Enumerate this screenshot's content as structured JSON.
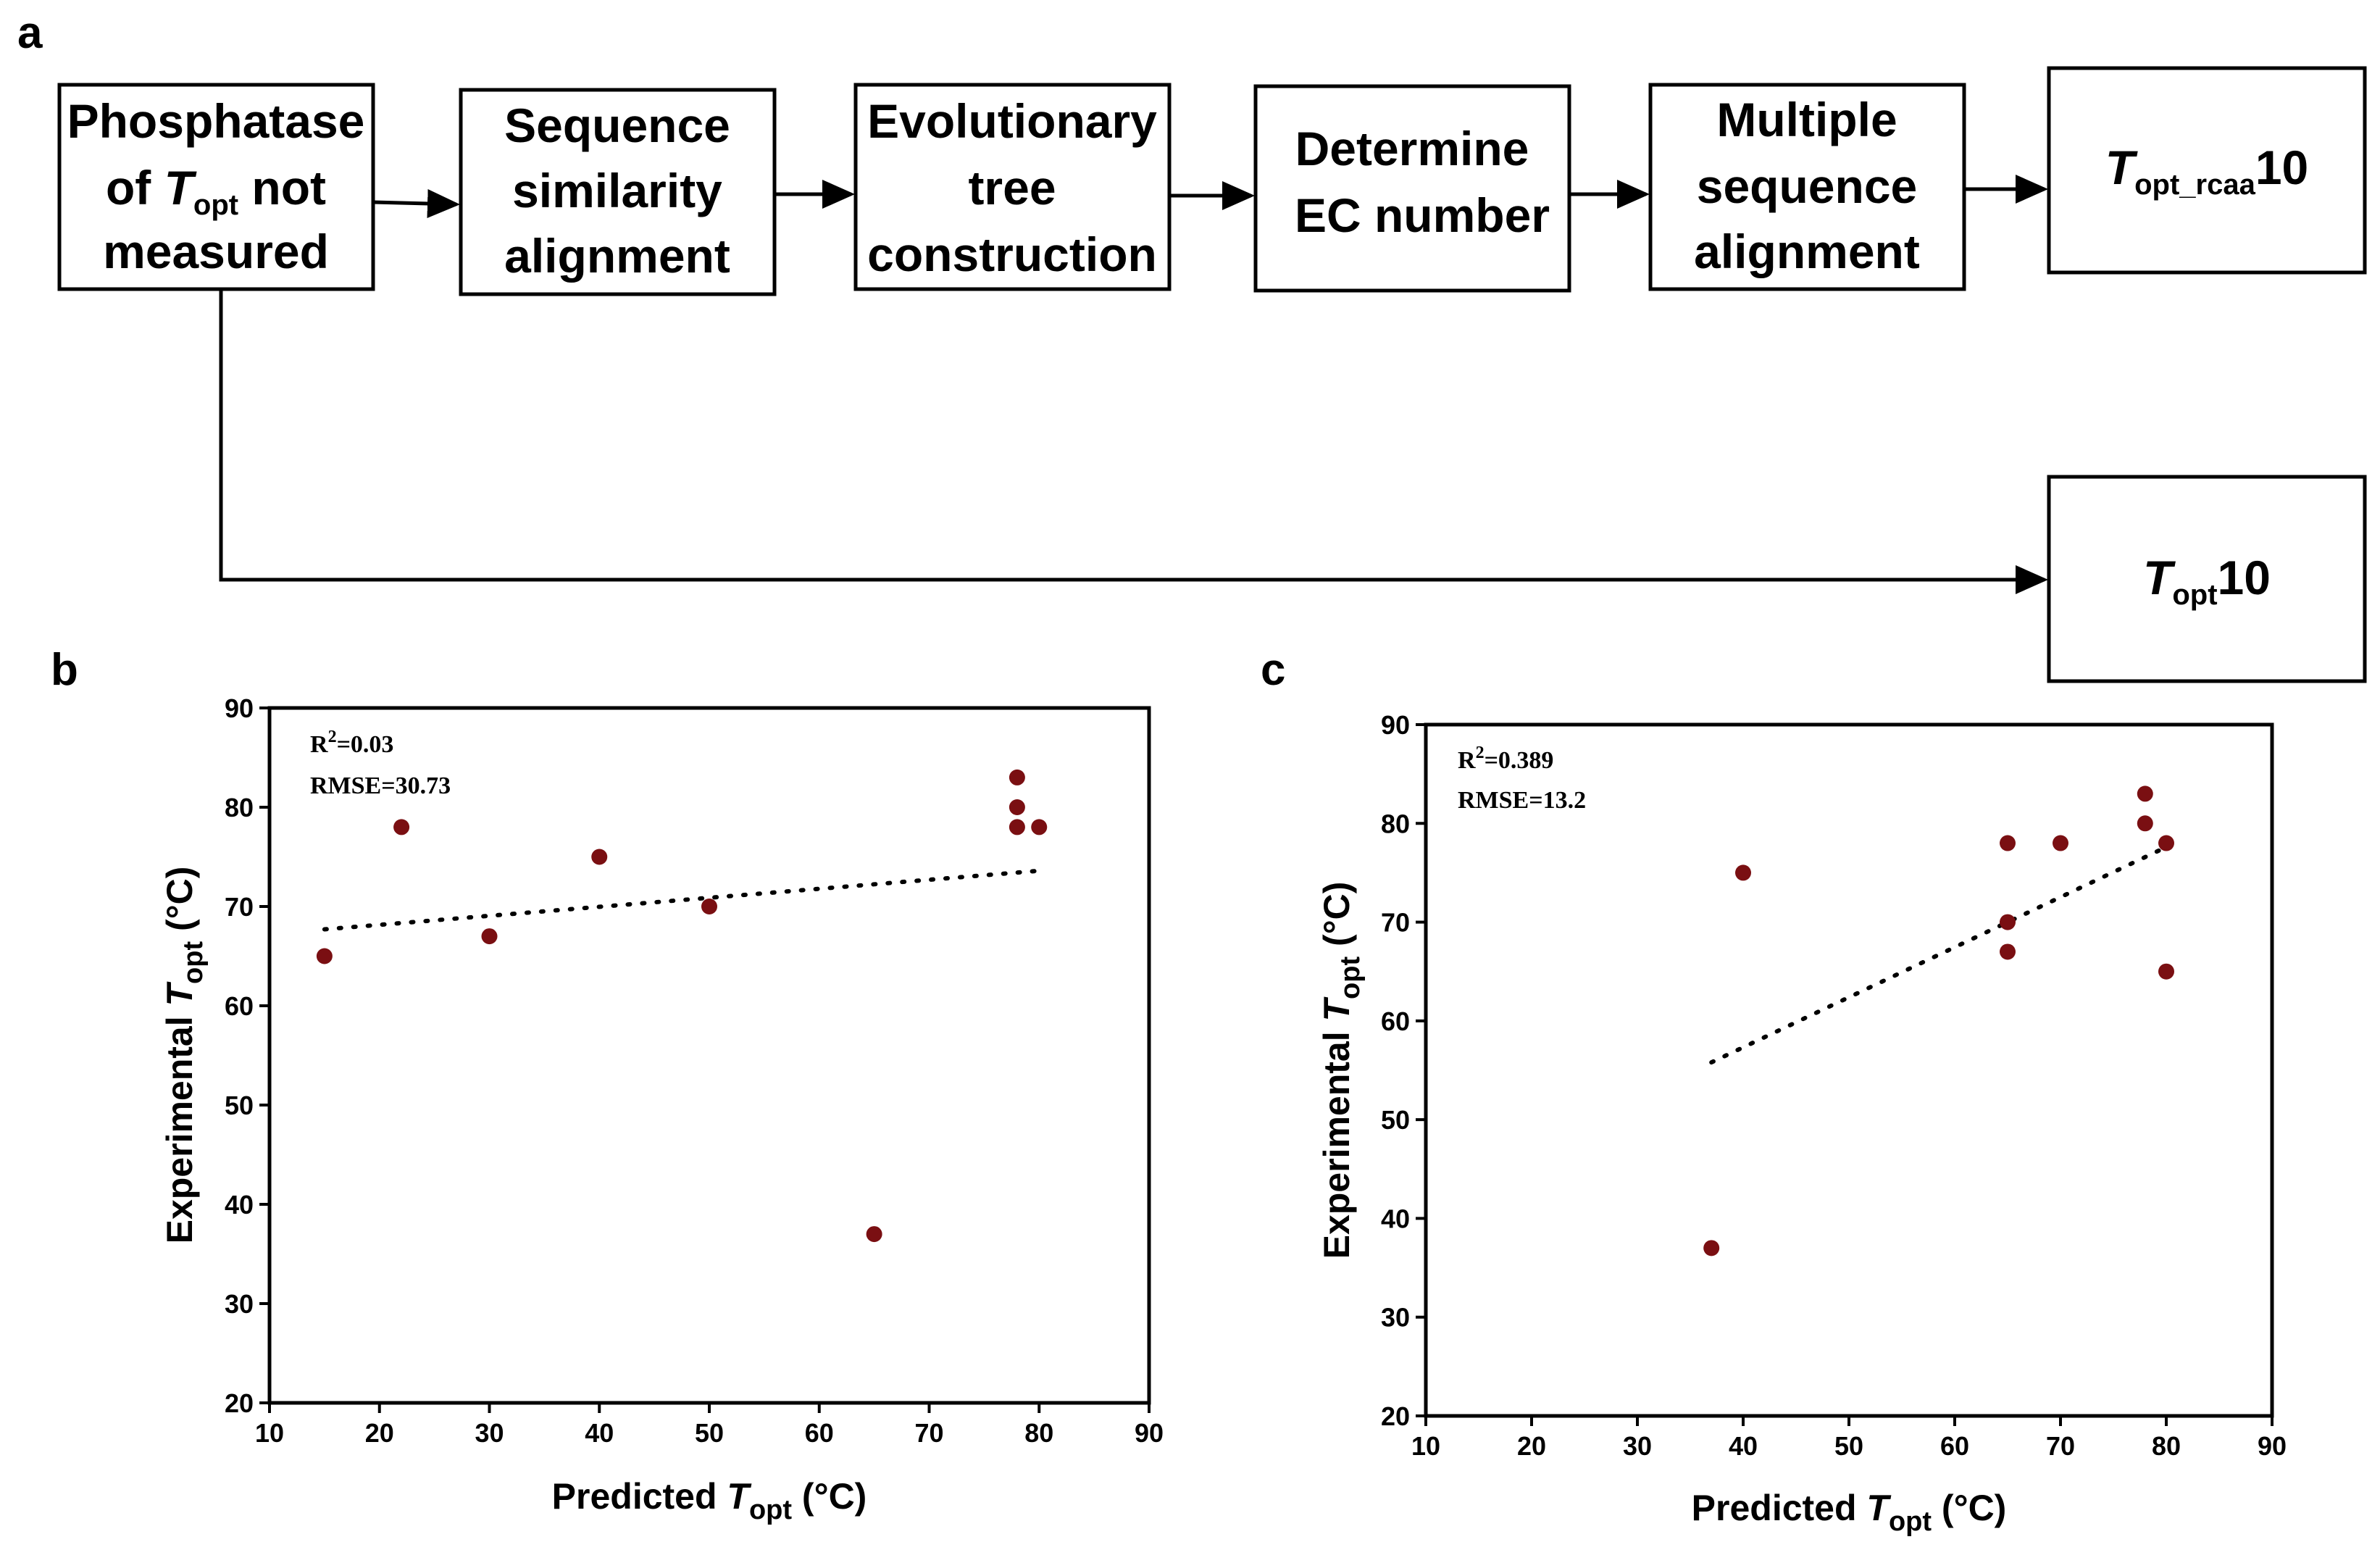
{
  "panel_a": {
    "letter": "a",
    "boxes": {
      "start": {
        "line1": "Phosphatase",
        "line2_pre": "of ",
        "line2_T": "T",
        "line2_sub": "opt",
        "line2_post": " not",
        "line3": "measured"
      },
      "seq_sim": {
        "line1": "Sequence",
        "line2": "similarity",
        "line3": "alignment"
      },
      "evo_tree": {
        "line1": "Evolutionary",
        "line2": "tree",
        "line3": "construction"
      },
      "ec": {
        "line1": "Determine",
        "line2": "EC number"
      },
      "msa": {
        "line1": "Multiple",
        "line2": "sequence",
        "line3": "alignment"
      },
      "topt_rcaa10": {
        "T": "T",
        "sub": "opt_rcaa",
        "suffix": "10"
      },
      "topt10": {
        "T": "T",
        "sub": "opt",
        "suffix": "10"
      }
    }
  },
  "chart_data": [
    {
      "panel": "b",
      "type": "scatter",
      "xlabel": {
        "pre": "Predicted ",
        "T": "T",
        "sub": "opt",
        "post": " (°C)"
      },
      "ylabel": {
        "pre": "Experimental ",
        "T": "T",
        "sub": "opt",
        "post": " (°C)"
      },
      "xlim": [
        10,
        90
      ],
      "ylim": [
        20,
        90
      ],
      "xticks": [
        10,
        20,
        30,
        40,
        50,
        60,
        70,
        80,
        90
      ],
      "yticks": [
        20,
        30,
        40,
        50,
        60,
        70,
        80,
        90
      ],
      "stats": {
        "r2_label": "R",
        "r2_sup": "2",
        "r2_value": "=0.03",
        "rmse": "RMSE=30.73"
      },
      "points": [
        {
          "x": 15,
          "y": 65
        },
        {
          "x": 22,
          "y": 78
        },
        {
          "x": 30,
          "y": 67
        },
        {
          "x": 40,
          "y": 75
        },
        {
          "x": 50,
          "y": 70
        },
        {
          "x": 65,
          "y": 37
        },
        {
          "x": 78,
          "y": 83
        },
        {
          "x": 78,
          "y": 80
        },
        {
          "x": 78,
          "y": 78
        },
        {
          "x": 80,
          "y": 78
        }
      ],
      "fit_line": {
        "x0": 15,
        "y0": 67.7,
        "x1": 80,
        "y1": 73.6
      }
    },
    {
      "panel": "c",
      "type": "scatter",
      "xlabel": {
        "pre": "Predicted ",
        "T": "T",
        "sub": "opt",
        "post": " (°C)"
      },
      "ylabel": {
        "pre": "Experimental ",
        "T": "T",
        "sub": "opt",
        "post": " (°C)"
      },
      "xlim": [
        10,
        90
      ],
      "ylim": [
        20,
        90
      ],
      "xticks": [
        10,
        20,
        30,
        40,
        50,
        60,
        70,
        80,
        90
      ],
      "yticks": [
        20,
        30,
        40,
        50,
        60,
        70,
        80,
        90
      ],
      "stats": {
        "r2_label": "R",
        "r2_sup": "2",
        "r2_value": "=0.389",
        "rmse": "RMSE=13.2"
      },
      "points": [
        {
          "x": 37,
          "y": 37
        },
        {
          "x": 40,
          "y": 75
        },
        {
          "x": 65,
          "y": 78
        },
        {
          "x": 65,
          "y": 70
        },
        {
          "x": 65,
          "y": 67
        },
        {
          "x": 70,
          "y": 78
        },
        {
          "x": 78,
          "y": 83
        },
        {
          "x": 78,
          "y": 80
        },
        {
          "x": 80,
          "y": 78
        },
        {
          "x": 80,
          "y": 65
        }
      ],
      "fit_line": {
        "x0": 37,
        "y0": 55.8,
        "x1": 80,
        "y1": 77.6
      }
    }
  ]
}
